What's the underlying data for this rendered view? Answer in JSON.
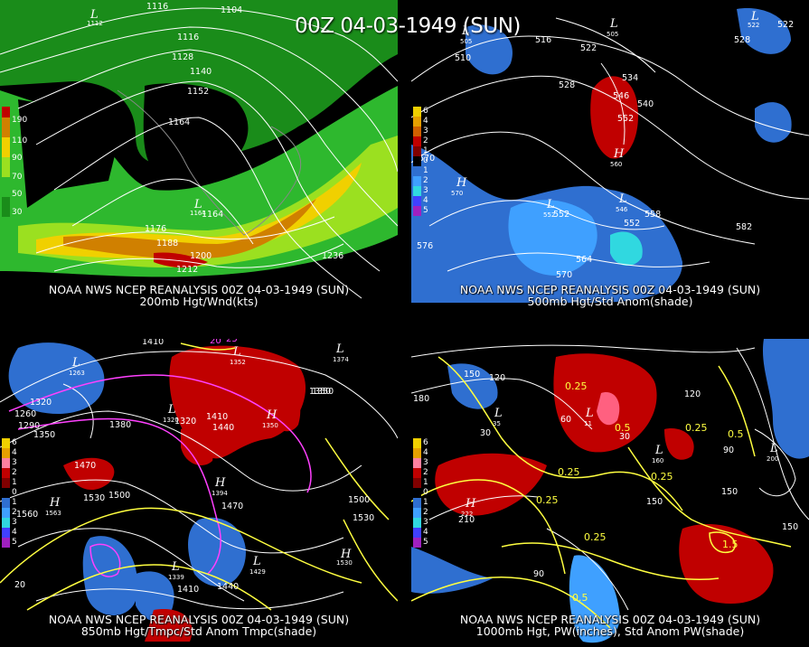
{
  "title": "00Z 04-03-1949 (SUN)",
  "colors": {
    "background": "#000000",
    "contour": "#ffffff",
    "yellow_contour": "#ffff40",
    "magenta_contour": "#ff40ff"
  },
  "panels": [
    {
      "id": "200mb",
      "caption_line1": "NOAA NWS NCEP REANALYSIS 00Z 04-03-1949 (SUN)",
      "caption_line2": "200mb Hgt/Wnd(kts)",
      "legend_labels": [
        "190",
        "110",
        "90",
        "70",
        "50",
        "30"
      ],
      "contour_labels": [
        "1116",
        "1104",
        "1116",
        "1128",
        "1140",
        "1152",
        "1164",
        "1164",
        "1176",
        "1188",
        "1200",
        "1212",
        "1236"
      ],
      "pressure_centers": [
        {
          "type": "L",
          "value": "1112"
        },
        {
          "type": "L",
          "value": "1164"
        }
      ]
    },
    {
      "id": "500mb",
      "caption_line1": "NOAA NWS NCEP REANALYSIS 00Z 04-03-1949 (SUN)",
      "caption_line2": "500mb Hgt/Std Anom(shade)",
      "legend_labels": [
        "6",
        "4",
        "3",
        "2",
        "1",
        "0",
        "1",
        "2",
        "3",
        "4",
        "5"
      ],
      "contour_labels": [
        "510",
        "516",
        "522",
        "528",
        "534",
        "546",
        "540",
        "552",
        "522",
        "528",
        "552",
        "558",
        "570",
        "564",
        "576",
        "582",
        "552",
        "570"
      ],
      "pressure_centers": [
        {
          "type": "L",
          "value": "505"
        },
        {
          "type": "L",
          "value": "522"
        },
        {
          "type": "L",
          "value": "505"
        },
        {
          "type": "H",
          "value": "560"
        },
        {
          "type": "H",
          "value": "570"
        },
        {
          "type": "L",
          "value": "552"
        },
        {
          "type": "L",
          "value": "546"
        }
      ]
    },
    {
      "id": "850mb",
      "caption_line1": "NOAA NWS NCEP REANALYSIS 00Z 04-03-1949 (SUN)",
      "caption_line2": "850mb Hgt/Tmpc/Std Anom Tmpc(shade)",
      "legend_labels": [
        "6",
        "4",
        "3",
        "2",
        "1",
        "0",
        "1",
        "2",
        "3",
        "4",
        "5"
      ],
      "contour_labels": [
        "1410",
        "1320",
        "1260",
        "1290",
        "1380",
        "1350",
        "1410",
        "1440",
        "1320",
        "1350",
        "1470",
        "1530",
        "1500",
        "1560",
        "1470",
        "1500",
        "1530",
        "1410",
        "1440",
        "1350",
        "20",
        "25",
        "20"
      ],
      "pressure_centers": [
        {
          "type": "L",
          "value": "1352"
        },
        {
          "type": "L",
          "value": "1263"
        },
        {
          "type": "L",
          "value": "1320"
        },
        {
          "type": "H",
          "value": "1350"
        },
        {
          "type": "H",
          "value": "1394"
        },
        {
          "type": "H",
          "value": "1563"
        },
        {
          "type": "H",
          "value": "1530"
        },
        {
          "type": "L",
          "value": "1429"
        },
        {
          "type": "L",
          "value": "1339"
        },
        {
          "type": "L",
          "value": "1374"
        }
      ]
    },
    {
      "id": "1000mb",
      "caption_line1": "NOAA NWS NCEP REANALYSIS 00Z 04-03-1949 (SUN)",
      "caption_line2": "1000mb Hgt, PW(inches), Std Anom PW(shade)",
      "legend_labels": [
        "6",
        "4",
        "3",
        "2",
        "1",
        "0",
        "1",
        "2",
        "3",
        "4",
        "5"
      ],
      "contour_labels": [
        "210",
        "150",
        "120",
        "180",
        "60",
        "30",
        "30",
        "0.25",
        "0.5",
        "0.25",
        "0.5",
        "0.25",
        "0.25",
        "0.25",
        "210",
        "150",
        "90",
        "0.25",
        "0.5",
        "1.5",
        "150",
        "120",
        "90",
        "150"
      ],
      "pressure_centers": [
        {
          "type": "L",
          "value": "35"
        },
        {
          "type": "L",
          "value": "11"
        },
        {
          "type": "L",
          "value": "160"
        },
        {
          "type": "L",
          "value": "200"
        },
        {
          "type": "H",
          "value": "222"
        }
      ]
    }
  ]
}
